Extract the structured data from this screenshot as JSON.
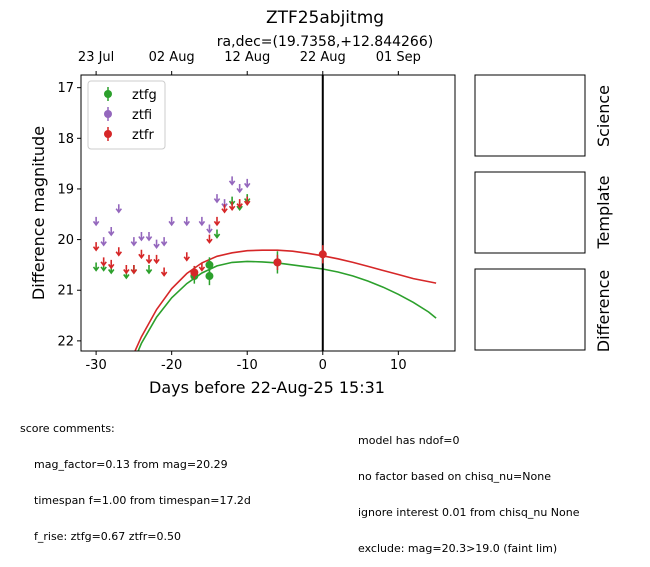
{
  "header": {
    "title": "ZTF25abjitmg",
    "subtitle": "ra,dec=(19.7358,+12.844266)"
  },
  "panels": {
    "science": "Science",
    "template": "Template",
    "difference": "Difference"
  },
  "comments_left": {
    "heading": "score comments:",
    "lines": [
      "mag_factor=0.13 from mag=20.29",
      "timespan f=1.00 from timespan=17.2d",
      "f_rise: ztfg=0.67 ztfr=0.50"
    ]
  },
  "comments_right": {
    "lines": [
      "model has ndof=0",
      "no factor based on chisq_nu=None",
      "ignore interest 0.01 from chisq_nu None",
      "exclude: mag=20.3>19.0 (faint lim)"
    ]
  },
  "chart_data": {
    "type": "scatter",
    "xlabel": "Days before 22-Aug-25 15:31",
    "ylabel": "Difference magnitude",
    "xlim": [
      -32,
      17.5
    ],
    "ylim": [
      22.2,
      16.75
    ],
    "y_inverted": true,
    "x_ticks": [
      -30,
      -20,
      -10,
      0,
      10
    ],
    "y_ticks": [
      17,
      18,
      19,
      20,
      21,
      22
    ],
    "top_axis_ticks": [
      {
        "label": "23 Jul",
        "x": -30.0
      },
      {
        "label": "02 Aug",
        "x": -20.0
      },
      {
        "label": "12 Aug",
        "x": -10.0
      },
      {
        "label": "22 Aug",
        "x": 0.0
      },
      {
        "label": "01 Sep",
        "x": 10.0
      }
    ],
    "vertical_line_x": 0,
    "legend": {
      "position": "top-left",
      "entries": [
        "ztfg",
        "ztfi",
        "ztfr"
      ]
    },
    "colors": {
      "ztfg": "#2ca02c",
      "ztfi": "#9467bd",
      "ztfr": "#d62728",
      "vline": "#000000"
    },
    "series": [
      {
        "name": "ztfg",
        "detections": [
          {
            "x": -17.0,
            "y": 20.72,
            "err": 0.15
          },
          {
            "x": -15.0,
            "y": 20.72,
            "err": 0.18
          },
          {
            "x": -15.0,
            "y": 20.5,
            "err": 0.15
          },
          {
            "x": -6.0,
            "y": 20.45,
            "err": 0.22
          }
        ],
        "upper_limits": [
          {
            "x": -30.0,
            "y": 20.55
          },
          {
            "x": -29.0,
            "y": 20.55
          },
          {
            "x": -28.0,
            "y": 20.6
          },
          {
            "x": -26.0,
            "y": 20.7
          },
          {
            "x": -25.0,
            "y": 20.6
          },
          {
            "x": -23.0,
            "y": 20.6
          },
          {
            "x": -17.0,
            "y": 20.62
          },
          {
            "x": -14.0,
            "y": 19.9
          },
          {
            "x": -12.0,
            "y": 19.25
          },
          {
            "x": -11.0,
            "y": 19.35
          },
          {
            "x": -10.0,
            "y": 19.2
          }
        ],
        "model_curve": [
          {
            "x": -25.0,
            "y": 22.4
          },
          {
            "x": -24.0,
            "y": 22.05
          },
          {
            "x": -22.0,
            "y": 21.53
          },
          {
            "x": -20.0,
            "y": 21.15
          },
          {
            "x": -18.0,
            "y": 20.87
          },
          {
            "x": -16.0,
            "y": 20.66
          },
          {
            "x": -14.0,
            "y": 20.52
          },
          {
            "x": -12.0,
            "y": 20.45
          },
          {
            "x": -10.0,
            "y": 20.43
          },
          {
            "x": -8.0,
            "y": 20.44
          },
          {
            "x": -6.0,
            "y": 20.46
          },
          {
            "x": -4.0,
            "y": 20.5
          },
          {
            "x": -2.0,
            "y": 20.54
          },
          {
            "x": 0.0,
            "y": 20.58
          },
          {
            "x": 2.0,
            "y": 20.64
          },
          {
            "x": 4.0,
            "y": 20.72
          },
          {
            "x": 6.0,
            "y": 20.82
          },
          {
            "x": 8.0,
            "y": 20.94
          },
          {
            "x": 10.0,
            "y": 21.08
          },
          {
            "x": 12.0,
            "y": 21.24
          },
          {
            "x": 14.0,
            "y": 21.43
          },
          {
            "x": 15.0,
            "y": 21.55
          }
        ]
      },
      {
        "name": "ztfi",
        "detections": [],
        "upper_limits": [
          {
            "x": -30.0,
            "y": 19.65
          },
          {
            "x": -29.0,
            "y": 20.05
          },
          {
            "x": -28.0,
            "y": 19.85
          },
          {
            "x": -27.0,
            "y": 19.4
          },
          {
            "x": -25.0,
            "y": 20.05
          },
          {
            "x": -24.0,
            "y": 19.95
          },
          {
            "x": -23.0,
            "y": 19.95
          },
          {
            "x": -22.0,
            "y": 20.1
          },
          {
            "x": -21.0,
            "y": 20.05
          },
          {
            "x": -20.0,
            "y": 19.65
          },
          {
            "x": -18.0,
            "y": 19.65
          },
          {
            "x": -16.0,
            "y": 19.65
          },
          {
            "x": -15.0,
            "y": 19.8
          },
          {
            "x": -14.0,
            "y": 19.2
          },
          {
            "x": -13.0,
            "y": 19.3
          },
          {
            "x": -12.0,
            "y": 18.85
          },
          {
            "x": -11.0,
            "y": 19.0
          },
          {
            "x": -10.0,
            "y": 18.9
          }
        ]
      },
      {
        "name": "ztfr",
        "detections": [
          {
            "x": -17.0,
            "y": 20.65,
            "err": 0.13
          },
          {
            "x": -6.0,
            "y": 20.45,
            "err": 0.15
          },
          {
            "x": 0.0,
            "y": 20.29,
            "err": 0.18
          }
        ],
        "upper_limits": [
          {
            "x": -30.0,
            "y": 20.15
          },
          {
            "x": -29.0,
            "y": 20.45
          },
          {
            "x": -28.0,
            "y": 20.5
          },
          {
            "x": -27.0,
            "y": 20.25
          },
          {
            "x": -26.0,
            "y": 20.6
          },
          {
            "x": -25.0,
            "y": 20.6
          },
          {
            "x": -24.0,
            "y": 20.3
          },
          {
            "x": -23.0,
            "y": 20.4
          },
          {
            "x": -22.0,
            "y": 20.4
          },
          {
            "x": -21.0,
            "y": 20.65
          },
          {
            "x": -18.0,
            "y": 20.35
          },
          {
            "x": -16.0,
            "y": 20.55
          },
          {
            "x": -15.0,
            "y": 20.0
          },
          {
            "x": -14.0,
            "y": 19.65
          },
          {
            "x": -13.0,
            "y": 19.4
          },
          {
            "x": -12.0,
            "y": 19.35
          },
          {
            "x": -11.0,
            "y": 19.3
          },
          {
            "x": -10.0,
            "y": 19.25
          }
        ],
        "model_curve": [
          {
            "x": -25.0,
            "y": 22.25
          },
          {
            "x": -24.0,
            "y": 21.92
          },
          {
            "x": -22.0,
            "y": 21.38
          },
          {
            "x": -20.0,
            "y": 20.97
          },
          {
            "x": -18.0,
            "y": 20.67
          },
          {
            "x": -16.0,
            "y": 20.46
          },
          {
            "x": -14.0,
            "y": 20.33
          },
          {
            "x": -12.0,
            "y": 20.26
          },
          {
            "x": -10.0,
            "y": 20.22
          },
          {
            "x": -8.0,
            "y": 20.21
          },
          {
            "x": -6.0,
            "y": 20.21
          },
          {
            "x": -4.0,
            "y": 20.23
          },
          {
            "x": -2.0,
            "y": 20.27
          },
          {
            "x": 0.0,
            "y": 20.32
          },
          {
            "x": 2.0,
            "y": 20.38
          },
          {
            "x": 4.0,
            "y": 20.45
          },
          {
            "x": 6.0,
            "y": 20.53
          },
          {
            "x": 8.0,
            "y": 20.61
          },
          {
            "x": 10.0,
            "y": 20.69
          },
          {
            "x": 12.0,
            "y": 20.77
          },
          {
            "x": 14.0,
            "y": 20.83
          },
          {
            "x": 15.0,
            "y": 20.86
          }
        ]
      }
    ]
  }
}
